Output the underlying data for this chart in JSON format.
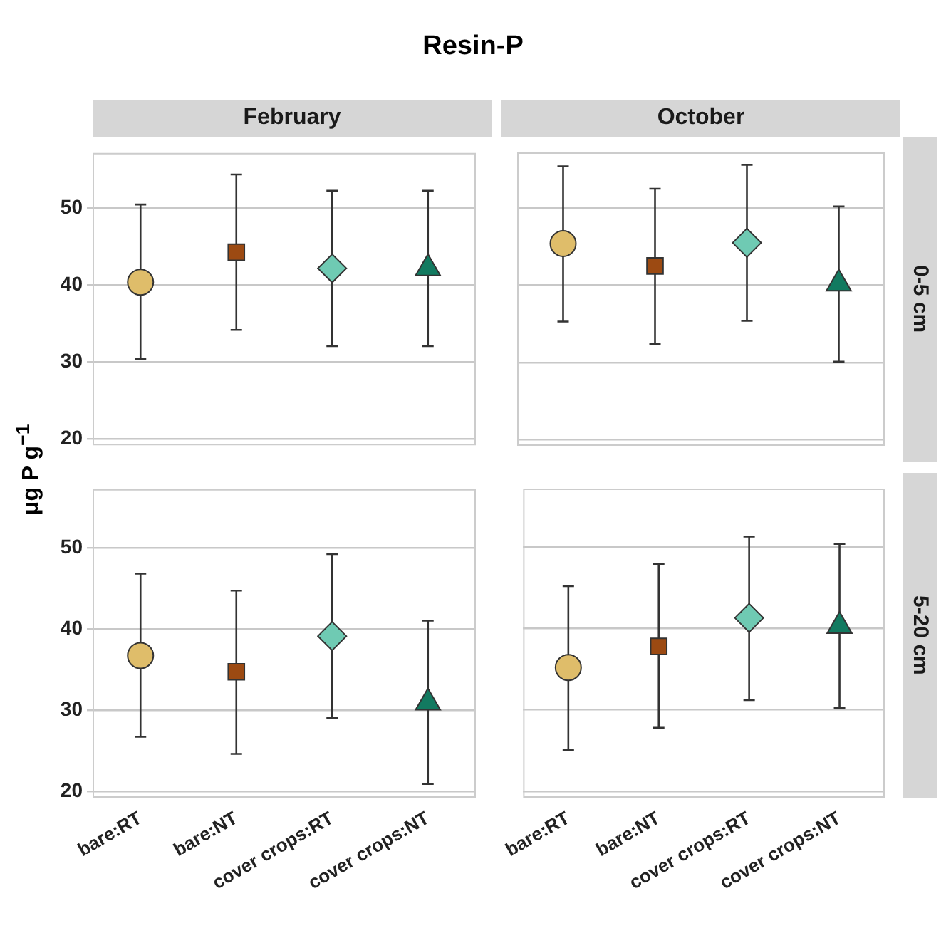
{
  "chart_data": [
    {
      "type": "scatter",
      "title": "February",
      "ylabel": "μg P g$^{−1}$",
      "annotations": [
        "Resin-P"
      ],
      "categories": [
        "bare:RT",
        "bare:NT",
        "cover crops:RT",
        "cover crops:NT"
      ],
      "ylim": [
        19.2,
        57.2
      ],
      "yticks": [
        20,
        30,
        40,
        50
      ],
      "grid": "y",
      "legend": false,
      "tick_labels": "y",
      "series": [
        {
          "x": [
            "bare:RT"
          ],
          "values": [
            40.4
          ],
          "errors": [
            [
              30.4,
              50.5
            ]
          ],
          "color": "#dfbd6a",
          "marker": "circle"
        },
        {
          "x": [
            "bare:NT"
          ],
          "values": [
            44.3
          ],
          "errors": [
            [
              34.2,
              54.4
            ]
          ],
          "color": "#9c4a12",
          "marker": "square"
        },
        {
          "x": [
            "cover crops:RT"
          ],
          "values": [
            42.2
          ],
          "errors": [
            [
              32.1,
              52.3
            ]
          ],
          "color": "#6fcab3",
          "marker": "diamond"
        },
        {
          "x": [
            "cover crops:NT"
          ],
          "values": [
            42.2
          ],
          "errors": [
            [
              32.1,
              52.3
            ]
          ],
          "color": "#127a60",
          "marker": "triangle"
        }
      ]
    },
    {
      "type": "scatter",
      "title": "October",
      "annotations": [
        "0-5 cm"
      ],
      "categories": [
        "bare:RT",
        "bare:NT",
        "cover crops:RT",
        "cover crops:NT"
      ],
      "ylim": [
        19.2,
        57.2
      ],
      "yticks": [
        20,
        30,
        40,
        50
      ],
      "grid": "y",
      "legend": false,
      "tick_labels": false,
      "series": [
        {
          "x": [
            "bare:RT"
          ],
          "values": [
            45.4
          ],
          "errors": [
            [
              35.3,
              55.4
            ]
          ],
          "color": "#dfbd6a",
          "marker": "circle"
        },
        {
          "x": [
            "bare:NT"
          ],
          "values": [
            42.5
          ],
          "errors": [
            [
              32.4,
              52.5
            ]
          ],
          "color": "#9c4a12",
          "marker": "square"
        },
        {
          "x": [
            "cover crops:RT"
          ],
          "values": [
            45.5
          ],
          "errors": [
            [
              35.4,
              55.6
            ]
          ],
          "color": "#6fcab3",
          "marker": "diamond"
        },
        {
          "x": [
            "cover crops:NT"
          ],
          "values": [
            40.2
          ],
          "errors": [
            [
              30.1,
              50.2
            ]
          ],
          "color": "#127a60",
          "marker": "triangle"
        }
      ]
    },
    {
      "type": "scatter",
      "categories": [
        "bare:RT",
        "bare:NT",
        "cover crops:RT",
        "cover crops:NT"
      ],
      "ylim": [
        19.2,
        57.2
      ],
      "yticks": [
        20,
        30,
        40,
        50
      ],
      "grid": "y",
      "legend": false,
      "series": [
        {
          "x": [
            "bare:RT"
          ],
          "values": [
            36.7
          ],
          "errors": [
            [
              26.7,
              46.8
            ]
          ],
          "color": "#dfbd6a",
          "marker": "circle"
        },
        {
          "x": [
            "bare:NT"
          ],
          "values": [
            34.7
          ],
          "errors": [
            [
              24.6,
              44.7
            ]
          ],
          "color": "#9c4a12",
          "marker": "square"
        },
        {
          "x": [
            "cover crops:RT"
          ],
          "values": [
            39.1
          ],
          "errors": [
            [
              29.0,
              49.2
            ]
          ],
          "color": "#6fcab3",
          "marker": "diamond"
        },
        {
          "x": [
            "cover crops:NT"
          ],
          "values": [
            30.9
          ],
          "errors": [
            [
              20.9,
              41.0
            ]
          ],
          "color": "#127a60",
          "marker": "triangle"
        }
      ]
    },
    {
      "type": "scatter",
      "annotations": [
        "5-20 cm"
      ],
      "categories": [
        "bare:RT",
        "bare:NT",
        "cover crops:RT",
        "cover crops:NT"
      ],
      "ylim": [
        19.2,
        57.2
      ],
      "yticks": [
        20,
        30,
        40,
        50
      ],
      "grid": "y",
      "legend": false,
      "tick_labels": "x",
      "series": [
        {
          "x": [
            "bare:RT"
          ],
          "values": [
            35.2
          ],
          "errors": [
            [
              25.1,
              45.2
            ]
          ],
          "color": "#dfbd6a",
          "marker": "circle"
        },
        {
          "x": [
            "bare:NT"
          ],
          "values": [
            37.8
          ],
          "errors": [
            [
              27.8,
              47.9
            ]
          ],
          "color": "#9c4a12",
          "marker": "square"
        },
        {
          "x": [
            "cover crops:RT"
          ],
          "values": [
            41.3
          ],
          "errors": [
            [
              31.2,
              51.3
            ]
          ],
          "color": "#6fcab3",
          "marker": "diamond"
        },
        {
          "x": [
            "cover crops:NT"
          ],
          "values": [
            40.3
          ],
          "errors": [
            [
              30.2,
              50.4
            ]
          ],
          "color": "#127a60",
          "marker": "triangle"
        }
      ]
    }
  ]
}
